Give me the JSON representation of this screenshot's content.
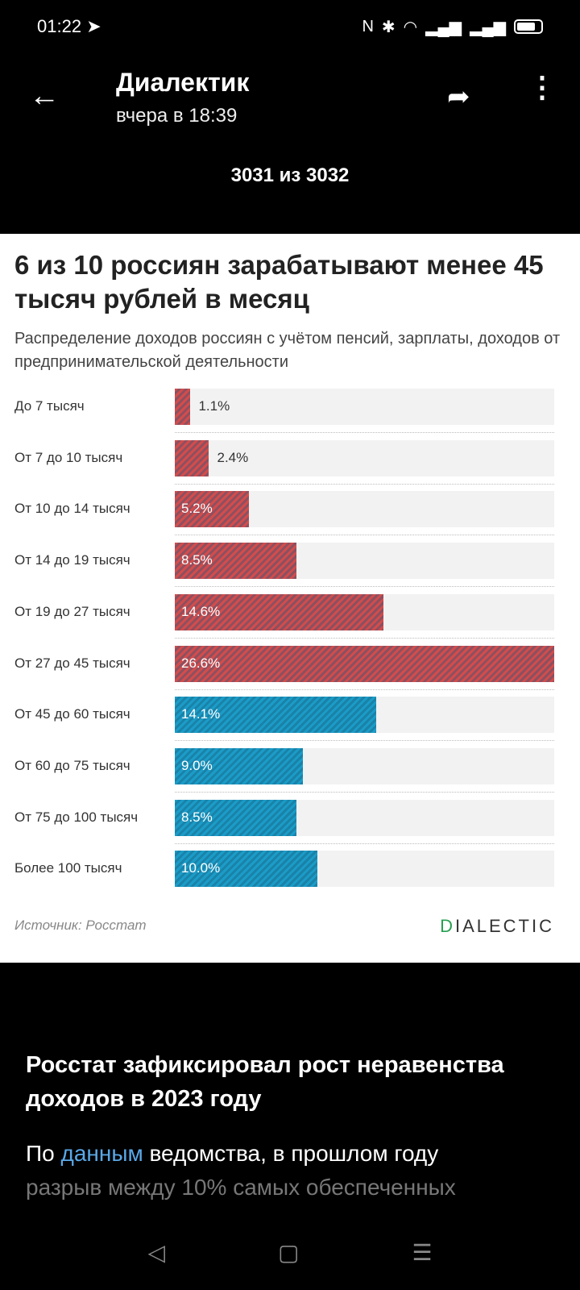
{
  "status": {
    "time": "01:22",
    "icons": [
      "telegram-icon",
      "nfc-icon",
      "bluetooth-icon",
      "wifi-icon",
      "signal-icon",
      "signal-icon",
      "battery-icon"
    ]
  },
  "header": {
    "title": "Диалектик",
    "subtitle": "вчера в 18:39",
    "counter": "3031 из 3032"
  },
  "chart_data": {
    "type": "bar",
    "title": "6 из 10 россиян зарабатывают менее 45 тысяч рублей в месяц",
    "subtitle": "Распределение доходов россиян с учётом пенсий, зарплаты, доходов от предпринимательской деятельности",
    "categories": [
      "До 7 тысяч",
      "От 7 до 10 тысяч",
      "От 10 до 14 тысяч",
      "От 14 до 19 тысяч",
      "От 19 до 27 тысяч",
      "От 27 до 45 тысяч",
      "От 45 до 60 тысяч",
      "От 60 до 75 тысяч",
      "От 75 до 100 тысяч",
      "Более 100 тысяч"
    ],
    "values": [
      1.1,
      2.4,
      5.2,
      8.5,
      14.6,
      26.6,
      14.1,
      9.0,
      8.5,
      10.0
    ],
    "labels": [
      "1.1%",
      "2.4%",
      "5.2%",
      "8.5%",
      "14.6%",
      "26.6%",
      "14.1%",
      "9.0%",
      "8.5%",
      "10.0%"
    ],
    "groups": [
      "below",
      "below",
      "below",
      "below",
      "below",
      "below",
      "above",
      "above",
      "above",
      "above"
    ],
    "xlim": [
      0,
      26.6
    ],
    "colors": {
      "below": "#d24c4c",
      "above": "#1b9cc8"
    },
    "source": "Источник: Росстат",
    "logo": "DIALECTIC"
  },
  "caption": {
    "title": "Росстат зафиксировал рост неравенства доходов в 2023 году",
    "p1": "По ",
    "link": "данным",
    "p2": " ведомства, в прошлом году",
    "p3": "разрыв между 10% самых обеспеченных"
  }
}
